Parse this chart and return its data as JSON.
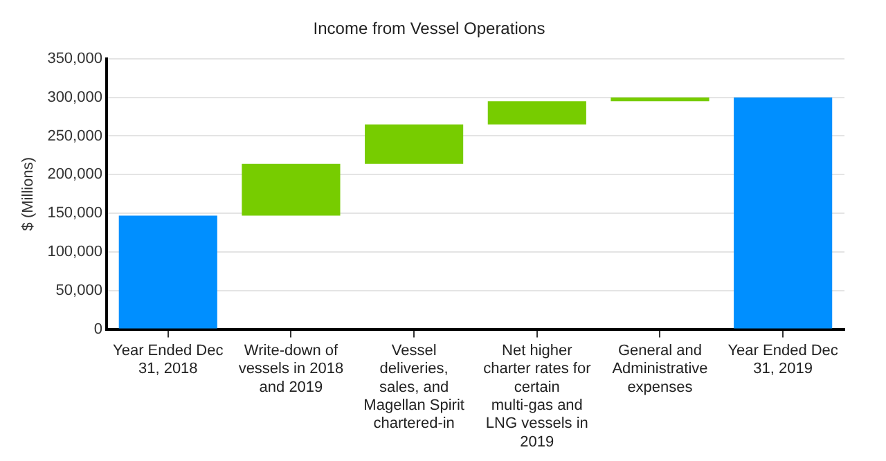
{
  "chart_data": {
    "type": "bar",
    "title": "Income from Vessel Operations",
    "ylabel": "$ (Millions)",
    "categories": [
      "Year Ended Dec 31, 2018",
      "Write-down of vessels in 2018 and 2019",
      "Vessel deliveries, sales, and Magellan Spirit chartered-in",
      "Net higher charter rates for certain multi-gas and LNG vessels in 2019",
      "General and Administrative expenses",
      "Year Ended Dec 31, 2019"
    ],
    "values": [
      147000,
      67000,
      51000,
      30000,
      5000,
      300000
    ],
    "base": [
      0,
      147000,
      214000,
      265000,
      295000,
      0
    ],
    "colors": [
      "#008fff",
      "#77cc00",
      "#77cc00",
      "#77cc00",
      "#77cc00",
      "#008fff"
    ],
    "ylim": [
      0,
      350000
    ],
    "yticks": [
      0,
      {
        "value": 50000,
        "label": "50,000"
      },
      {
        "value": 100000,
        "label": "100,000"
      },
      {
        "value": 150000,
        "label": "150,000"
      },
      {
        "value": 200000,
        "label": "200,000"
      },
      {
        "value": 250000,
        "label": "250,000"
      },
      {
        "value": 300000,
        "label": "300,000"
      },
      {
        "value": 350000,
        "label": "350,000"
      }
    ],
    "grid": "y",
    "legend": false
  }
}
